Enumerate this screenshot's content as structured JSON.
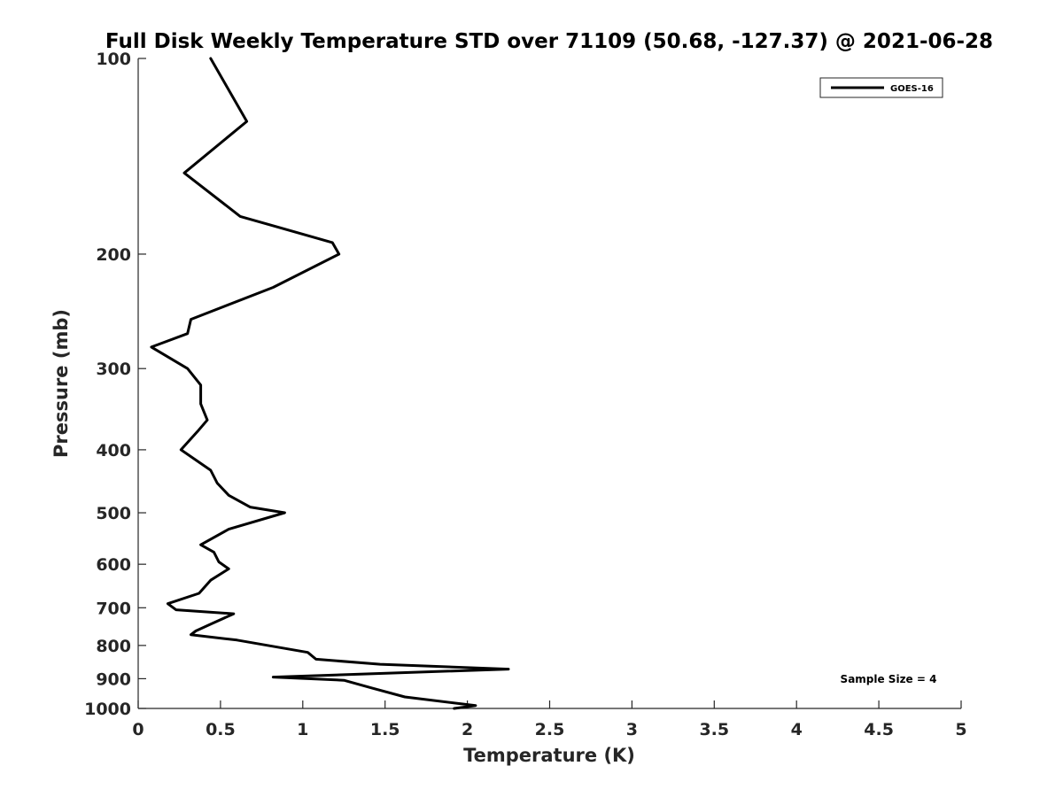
{
  "chart_data": {
    "type": "line",
    "title": "Full Disk Weekly Temperature STD over 71109 (50.68, -127.37) @ 2021-06-28",
    "xlabel": "Temperature (K)",
    "ylabel": "Pressure (mb)",
    "xlim": [
      0,
      5
    ],
    "ylim": [
      100,
      1000
    ],
    "y_scale": "log",
    "y_reversed": true,
    "grid": false,
    "legend_position": "top-right",
    "x_ticks": [
      "0",
      "0.5",
      "1",
      "1.5",
      "2",
      "2.5",
      "3",
      "3.5",
      "4",
      "4.5",
      "5"
    ],
    "y_ticks": [
      "100",
      "200",
      "300",
      "400",
      "500",
      "600",
      "700",
      "800",
      "900",
      "1000"
    ],
    "series": [
      {
        "name": "GOES-16",
        "color": "#000000",
        "points": [
          [
            0.44,
            100
          ],
          [
            0.66,
            125
          ],
          [
            0.28,
            150
          ],
          [
            0.62,
            175
          ],
          [
            1.18,
            192
          ],
          [
            1.22,
            200
          ],
          [
            0.82,
            225
          ],
          [
            0.32,
            252
          ],
          [
            0.3,
            265
          ],
          [
            0.08,
            278
          ],
          [
            0.3,
            300
          ],
          [
            0.38,
            318
          ],
          [
            0.38,
            340
          ],
          [
            0.42,
            360
          ],
          [
            0.36,
            375
          ],
          [
            0.26,
            400
          ],
          [
            0.44,
            430
          ],
          [
            0.48,
            450
          ],
          [
            0.55,
            470
          ],
          [
            0.68,
            490
          ],
          [
            0.89,
            500
          ],
          [
            0.55,
            530
          ],
          [
            0.38,
            560
          ],
          [
            0.46,
            575
          ],
          [
            0.49,
            595
          ],
          [
            0.55,
            610
          ],
          [
            0.44,
            635
          ],
          [
            0.37,
            665
          ],
          [
            0.18,
            690
          ],
          [
            0.23,
            705
          ],
          [
            0.58,
            715
          ],
          [
            0.45,
            740
          ],
          [
            0.35,
            760
          ],
          [
            0.32,
            770
          ],
          [
            0.6,
            785
          ],
          [
            1.03,
            820
          ],
          [
            1.08,
            840
          ],
          [
            1.47,
            855
          ],
          [
            2.25,
            870
          ],
          [
            0.82,
            895
          ],
          [
            1.25,
            905
          ],
          [
            1.42,
            930
          ],
          [
            1.62,
            960
          ],
          [
            2.05,
            990
          ],
          [
            1.92,
            1000
          ]
        ]
      }
    ],
    "annotation": "Sample Size = 4"
  }
}
